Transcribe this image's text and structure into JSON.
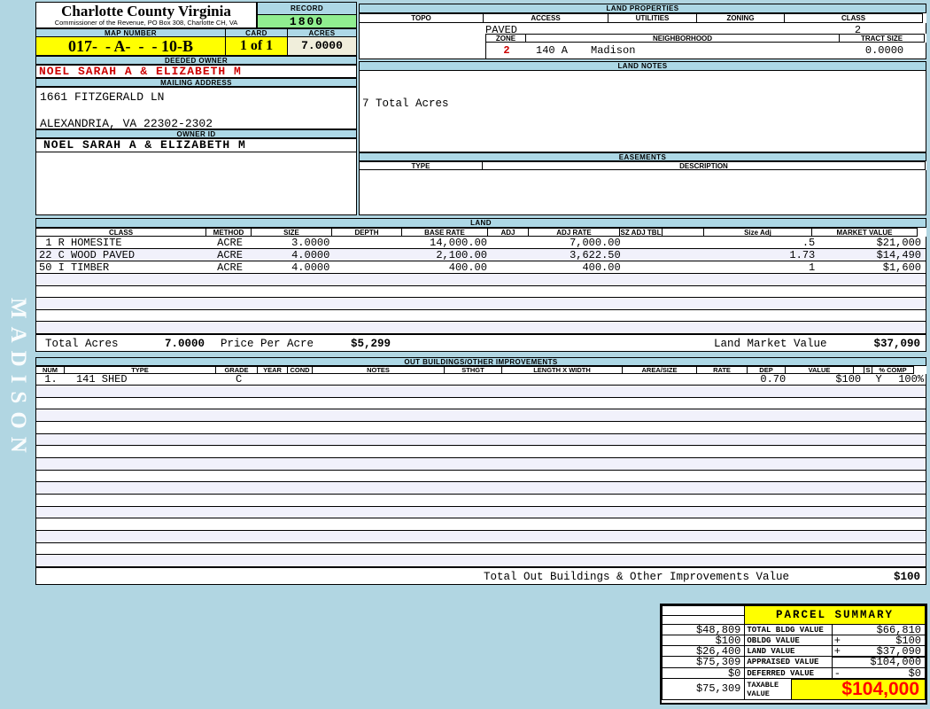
{
  "county": {
    "title": "Charlotte County Virginia",
    "subtitle": "Commissioner of the Revenue, PO Box 308, Charlotte CH, VA"
  },
  "record": {
    "label": "RECORD",
    "value": "1800"
  },
  "map": {
    "label": "MAP NUMBER",
    "value": "017-  - A-  -  - 10-B"
  },
  "card": {
    "label": "CARD",
    "value": "1 of 1"
  },
  "acres": {
    "label": "ACRES",
    "value": "7.0000"
  },
  "deeded_owner": {
    "label": "DEEDED OWNER",
    "value": "NOEL SARAH A & ELIZABETH M"
  },
  "mailing": {
    "label": "MAILING ADDRESS",
    "line1": "1661 FITZGERALD LN",
    "line2": "ALEXANDRIA, VA 22302-2302"
  },
  "owner_id": {
    "label": "OWNER ID",
    "value": "NOEL SARAH A & ELIZABETH M"
  },
  "sidebar": {
    "watermark": "MADISON"
  },
  "land_properties": {
    "label": "LAND PROPERTIES",
    "headers": [
      "TOPO",
      "ACCESS",
      "UTILITIES",
      "ZONING",
      "CLASS"
    ],
    "access_value": "PAVED",
    "class_value": "2",
    "zone": {
      "label": "ZONE",
      "value": "2"
    },
    "neighborhood": {
      "label": "NEIGHBORHOOD",
      "code": "140 A",
      "name": "Madison"
    },
    "tract_size": {
      "label": "TRACT SIZE",
      "value": "0.0000"
    }
  },
  "land_notes": {
    "label": "LAND NOTES",
    "text": "7 Total Acres"
  },
  "easements": {
    "label": "EASEMENTS",
    "type_header": "TYPE",
    "description_header": "DESCRIPTION"
  },
  "land": {
    "label": "LAND",
    "headers": [
      "CLASS",
      "METHOD",
      "SIZE",
      "DEPTH",
      "BASE RATE",
      "ADJ",
      "ADJ RATE",
      "SZ ADJ TBL",
      "",
      "Size Adj",
      "MARKET VALUE"
    ],
    "rows": [
      [
        " 1 R HOMESITE",
        "ACRE",
        "3.0000",
        "",
        "14,000.00",
        "",
        "7,000.00",
        "",
        "",
        ".5",
        "$21,000"
      ],
      [
        "22 C WOOD PAVED",
        "ACRE",
        "4.0000",
        "",
        "2,100.00",
        "",
        "3,622.50",
        "",
        "",
        "1.73",
        "$14,490"
      ],
      [
        "50 I TIMBER",
        "ACRE",
        "4.0000",
        "",
        "400.00",
        "",
        "400.00",
        "",
        "",
        "1",
        "$1,600"
      ]
    ],
    "totals": {
      "total_acres_label": "Total Acres",
      "total_acres": "7.0000",
      "price_per_acre_label": "Price Per Acre",
      "price_per_acre": "$5,299",
      "market_value_label": "Land Market Value",
      "market_value": "$37,090"
    }
  },
  "out_buildings": {
    "label": "OUT BUILDINGS/OTHER IMPROVEMENTS",
    "headers": [
      "NUM",
      "TYPE",
      "GRADE",
      "YEAR",
      "COND",
      "NOTES",
      "STHGT",
      "LENGTH X WIDTH",
      "AREA/SIZE",
      "RATE",
      "DEP",
      "VALUE",
      "",
      "S",
      "% COMP"
    ],
    "rows": [
      [
        "1.",
        "141 SHED",
        "C",
        "",
        "",
        "",
        "",
        "",
        "",
        "",
        "0.70",
        "$100",
        "",
        "Y",
        "100%"
      ]
    ],
    "total_label": "Total Out Buildings & Other Improvements Value",
    "total_value": "$100"
  },
  "parcel_summary": {
    "title": "PARCEL SUMMARY",
    "rows": [
      {
        "prior": "$48,809",
        "label": "TOTAL BLDG VALUE",
        "op": "",
        "value": "$66,810"
      },
      {
        "prior": "$100",
        "label": "OBLDG VALUE",
        "op": "+",
        "value": "$100"
      },
      {
        "prior": "$26,400",
        "label": "LAND VALUE",
        "op": "+",
        "value": "$37,090"
      },
      {
        "prior": "$75,309",
        "label": "APPRAISED VALUE",
        "op": "",
        "value": "$104,000"
      },
      {
        "prior": "$0",
        "label": "DEFERRED VALUE",
        "op": "-",
        "value": "$0"
      }
    ],
    "taxable": {
      "prior": "$75,309",
      "label": "TAXABLE\nVALUE",
      "value": "$104,000"
    }
  },
  "colors": {
    "background": "#b1d6e2",
    "section_bar": "#add8e6",
    "record_green": "#90ee90",
    "highlight_yellow": "#ffff00",
    "acres_cream": "#f0eedb",
    "stripe": "#f1f1fb",
    "owner_red": "#cc0000",
    "taxable_red": "#ff0000"
  }
}
